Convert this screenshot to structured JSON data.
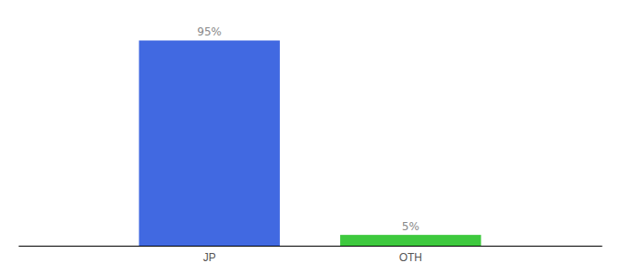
{
  "chart_data": {
    "type": "bar",
    "categories": [
      "JP",
      "OTH"
    ],
    "values": [
      95,
      5
    ],
    "value_labels": [
      "95%",
      "5%"
    ],
    "colors": [
      "#4169e1",
      "#3ec93e"
    ],
    "ylim": [
      0,
      107
    ],
    "data_labels": true,
    "tick_labels": "x"
  }
}
